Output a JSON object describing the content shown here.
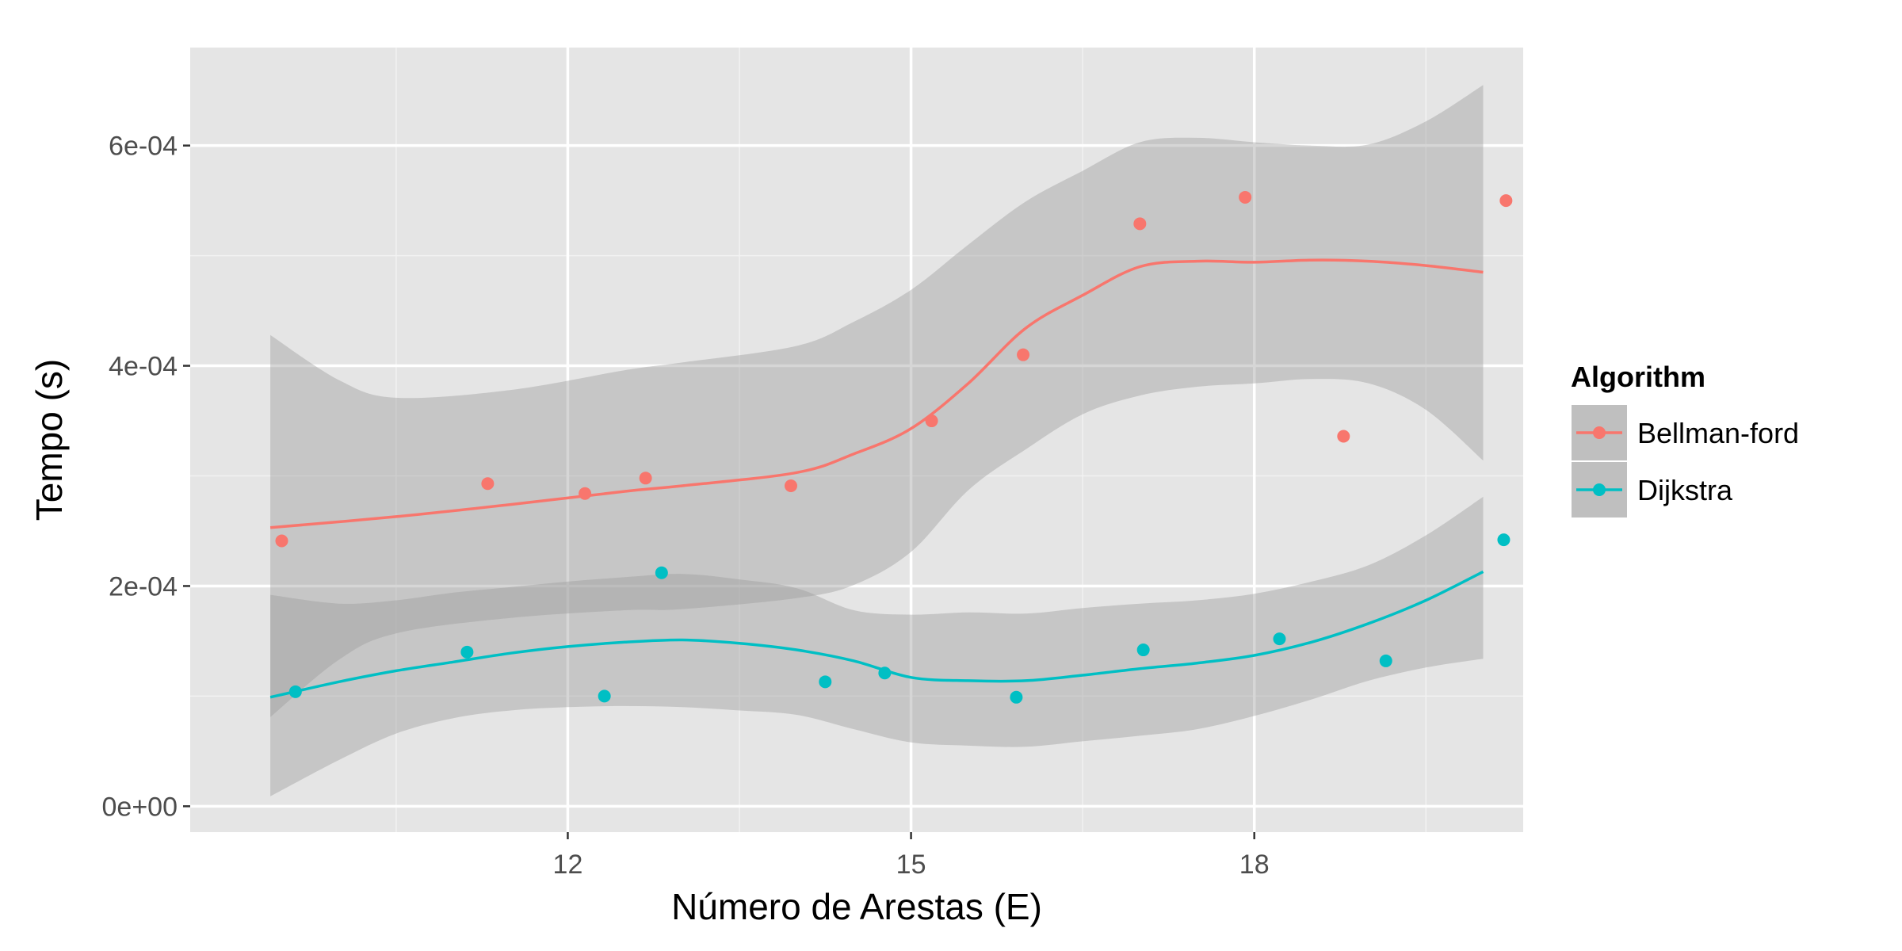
{
  "chart_data": {
    "type": "scatter",
    "title": "",
    "xlabel": "Número de Arestas (E)",
    "ylabel": "Tempo (s)",
    "xlim": [
      8.7,
      20.35
    ],
    "ylim": [
      -2.35e-05,
      0.000689
    ],
    "x_ticks": [
      12,
      15,
      18
    ],
    "x_tick_labels": [
      "12",
      "15",
      "18"
    ],
    "y_ticks": [
      0,
      0.0002,
      0.0004,
      0.0006
    ],
    "y_tick_labels": [
      "0e+00",
      "2e-04",
      "4e-04",
      "6e-04"
    ],
    "grid": true,
    "legend": {
      "title": "Algorithm",
      "position": "right"
    },
    "series": [
      {
        "name": "Bellman-ford",
        "color": "#F8766D",
        "points": [
          {
            "x": 9.5,
            "y": 0.000241
          },
          {
            "x": 11.3,
            "y": 0.000293
          },
          {
            "x": 12.15,
            "y": 0.000284
          },
          {
            "x": 12.68,
            "y": 0.000298
          },
          {
            "x": 13.95,
            "y": 0.000291
          },
          {
            "x": 15.18,
            "y": 0.00035
          },
          {
            "x": 15.98,
            "y": 0.00041
          },
          {
            "x": 17.0,
            "y": 0.000529
          },
          {
            "x": 17.92,
            "y": 0.000553
          },
          {
            "x": 18.78,
            "y": 0.000336
          },
          {
            "x": 20.2,
            "y": 0.00055
          }
        ],
        "smooth": [
          {
            "x": 9.4,
            "y": 0.000253
          },
          {
            "x": 10.5,
            "y": 0.000263
          },
          {
            "x": 11.5,
            "y": 0.000274
          },
          {
            "x": 12.5,
            "y": 0.000286
          },
          {
            "x": 13.0,
            "y": 0.000291
          },
          {
            "x": 14.0,
            "y": 0.000303
          },
          {
            "x": 14.5,
            "y": 0.00032
          },
          {
            "x": 15.0,
            "y": 0.000343
          },
          {
            "x": 15.5,
            "y": 0.000384
          },
          {
            "x": 16.0,
            "y": 0.000434
          },
          {
            "x": 16.5,
            "y": 0.000464
          },
          {
            "x": 17.0,
            "y": 0.00049
          },
          {
            "x": 17.5,
            "y": 0.000495
          },
          {
            "x": 18.0,
            "y": 0.000494
          },
          {
            "x": 18.5,
            "y": 0.000496
          },
          {
            "x": 19.0,
            "y": 0.000495
          },
          {
            "x": 19.5,
            "y": 0.000491
          },
          {
            "x": 20.0,
            "y": 0.000485
          }
        ],
        "band_upper": [
          {
            "x": 9.4,
            "y": 0.000428
          },
          {
            "x": 10.0,
            "y": 0.000387
          },
          {
            "x": 10.5,
            "y": 0.000371
          },
          {
            "x": 11.5,
            "y": 0.000378
          },
          {
            "x": 12.5,
            "y": 0.000396
          },
          {
            "x": 13.0,
            "y": 0.000403
          },
          {
            "x": 14.0,
            "y": 0.000418
          },
          {
            "x": 14.5,
            "y": 0.00044
          },
          {
            "x": 15.0,
            "y": 0.000469
          },
          {
            "x": 15.5,
            "y": 0.00051
          },
          {
            "x": 16.0,
            "y": 0.000549
          },
          {
            "x": 16.5,
            "y": 0.000577
          },
          {
            "x": 17.0,
            "y": 0.000603
          },
          {
            "x": 17.5,
            "y": 0.000607
          },
          {
            "x": 18.0,
            "y": 0.000603
          },
          {
            "x": 18.5,
            "y": 0.0006
          },
          {
            "x": 19.0,
            "y": 0.000601
          },
          {
            "x": 19.5,
            "y": 0.000622
          },
          {
            "x": 20.0,
            "y": 0.000655
          }
        ],
        "band_lower": [
          {
            "x": 9.4,
            "y": 8.1e-05
          },
          {
            "x": 10.0,
            "y": 0.000133
          },
          {
            "x": 10.5,
            "y": 0.000157
          },
          {
            "x": 11.5,
            "y": 0.000171
          },
          {
            "x": 12.5,
            "y": 0.000178
          },
          {
            "x": 13.0,
            "y": 0.000179
          },
          {
            "x": 14.0,
            "y": 0.000189
          },
          {
            "x": 14.5,
            "y": 0.000201
          },
          {
            "x": 15.0,
            "y": 0.000231
          },
          {
            "x": 15.5,
            "y": 0.000287
          },
          {
            "x": 16.0,
            "y": 0.000324
          },
          {
            "x": 16.5,
            "y": 0.000356
          },
          {
            "x": 17.0,
            "y": 0.000373
          },
          {
            "x": 17.5,
            "y": 0.000381
          },
          {
            "x": 18.0,
            "y": 0.000384
          },
          {
            "x": 18.5,
            "y": 0.000388
          },
          {
            "x": 19.0,
            "y": 0.000384
          },
          {
            "x": 19.5,
            "y": 0.00036
          },
          {
            "x": 20.0,
            "y": 0.000314
          }
        ]
      },
      {
        "name": "Dijkstra",
        "color": "#00BFC4",
        "points": [
          {
            "x": 9.62,
            "y": 0.000104
          },
          {
            "x": 11.12,
            "y": 0.00014
          },
          {
            "x": 12.32,
            "y": 0.0001
          },
          {
            "x": 12.82,
            "y": 0.000212
          },
          {
            "x": 14.25,
            "y": 0.000113
          },
          {
            "x": 14.77,
            "y": 0.000121
          },
          {
            "x": 15.92,
            "y": 9.9e-05
          },
          {
            "x": 17.03,
            "y": 0.000142
          },
          {
            "x": 18.22,
            "y": 0.000152
          },
          {
            "x": 19.15,
            "y": 0.000132
          },
          {
            "x": 20.18,
            "y": 0.000242
          }
        ],
        "smooth": [
          {
            "x": 9.4,
            "y": 9.9e-05
          },
          {
            "x": 10.0,
            "y": 0.000113
          },
          {
            "x": 10.5,
            "y": 0.000123
          },
          {
            "x": 11.0,
            "y": 0.000131
          },
          {
            "x": 11.5,
            "y": 0.000139
          },
          {
            "x": 12.0,
            "y": 0.000145
          },
          {
            "x": 12.5,
            "y": 0.000149
          },
          {
            "x": 13.0,
            "y": 0.000151
          },
          {
            "x": 13.5,
            "y": 0.000148
          },
          {
            "x": 14.0,
            "y": 0.000142
          },
          {
            "x": 14.5,
            "y": 0.000132
          },
          {
            "x": 15.0,
            "y": 0.000117
          },
          {
            "x": 15.5,
            "y": 0.000114
          },
          {
            "x": 16.0,
            "y": 0.000114
          },
          {
            "x": 16.5,
            "y": 0.000119
          },
          {
            "x": 17.0,
            "y": 0.000125
          },
          {
            "x": 17.5,
            "y": 0.00013
          },
          {
            "x": 18.0,
            "y": 0.000137
          },
          {
            "x": 18.5,
            "y": 0.000149
          },
          {
            "x": 19.0,
            "y": 0.000166
          },
          {
            "x": 19.5,
            "y": 0.000187
          },
          {
            "x": 20.0,
            "y": 0.000213
          }
        ],
        "band_upper": [
          {
            "x": 9.4,
            "y": 0.000192
          },
          {
            "x": 10.0,
            "y": 0.000184
          },
          {
            "x": 10.5,
            "y": 0.000187
          },
          {
            "x": 11.0,
            "y": 0.000194
          },
          {
            "x": 11.5,
            "y": 0.000199
          },
          {
            "x": 12.0,
            "y": 0.000204
          },
          {
            "x": 12.5,
            "y": 0.000208
          },
          {
            "x": 13.0,
            "y": 0.000211
          },
          {
            "x": 13.5,
            "y": 0.000206
          },
          {
            "x": 14.0,
            "y": 0.000198
          },
          {
            "x": 14.5,
            "y": 0.000178
          },
          {
            "x": 15.0,
            "y": 0.000174
          },
          {
            "x": 15.5,
            "y": 0.000176
          },
          {
            "x": 16.0,
            "y": 0.000175
          },
          {
            "x": 16.5,
            "y": 0.00018
          },
          {
            "x": 17.0,
            "y": 0.000184
          },
          {
            "x": 17.5,
            "y": 0.000187
          },
          {
            "x": 18.0,
            "y": 0.000193
          },
          {
            "x": 18.5,
            "y": 0.000204
          },
          {
            "x": 19.0,
            "y": 0.000219
          },
          {
            "x": 19.5,
            "y": 0.000246
          },
          {
            "x": 20.0,
            "y": 0.000281
          }
        ],
        "band_lower": [
          {
            "x": 9.4,
            "y": 9e-06
          },
          {
            "x": 10.0,
            "y": 4.2e-05
          },
          {
            "x": 10.5,
            "y": 6.6e-05
          },
          {
            "x": 11.0,
            "y": 8e-05
          },
          {
            "x": 11.5,
            "y": 8.7e-05
          },
          {
            "x": 12.0,
            "y": 9e-05
          },
          {
            "x": 12.5,
            "y": 9.1e-05
          },
          {
            "x": 13.0,
            "y": 9e-05
          },
          {
            "x": 13.5,
            "y": 8.7e-05
          },
          {
            "x": 14.0,
            "y": 8.3e-05
          },
          {
            "x": 14.5,
            "y": 7e-05
          },
          {
            "x": 15.0,
            "y": 5.8e-05
          },
          {
            "x": 15.5,
            "y": 5.5e-05
          },
          {
            "x": 16.0,
            "y": 5.4e-05
          },
          {
            "x": 16.5,
            "y": 5.9e-05
          },
          {
            "x": 17.0,
            "y": 6.4e-05
          },
          {
            "x": 17.5,
            "y": 7e-05
          },
          {
            "x": 18.0,
            "y": 8.2e-05
          },
          {
            "x": 18.5,
            "y": 9.7e-05
          },
          {
            "x": 19.0,
            "y": 0.000114
          },
          {
            "x": 19.5,
            "y": 0.000126
          },
          {
            "x": 20.0,
            "y": 0.000134
          }
        ]
      }
    ]
  }
}
